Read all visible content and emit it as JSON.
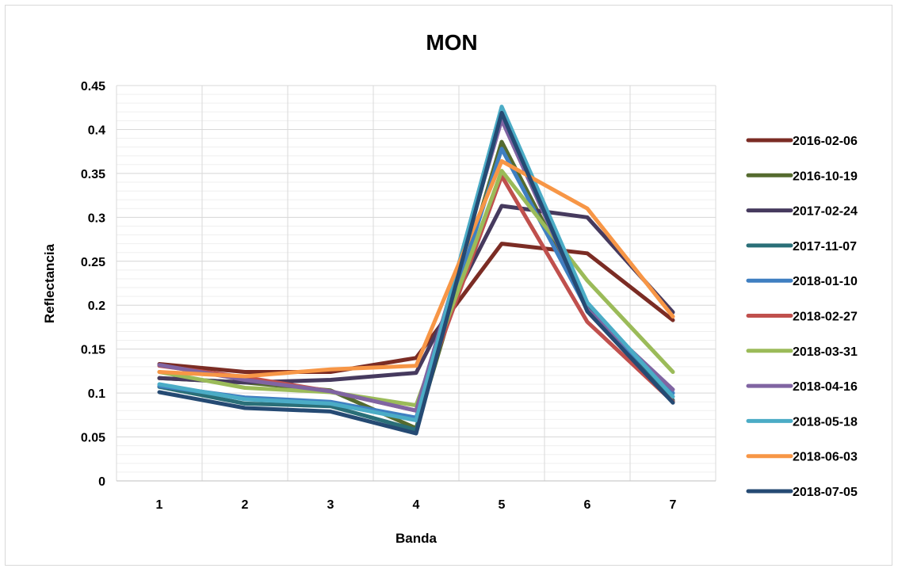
{
  "chart_data": {
    "type": "line",
    "title": "MON",
    "xlabel": "Banda",
    "ylabel": "Reflectancia",
    "x": [
      1,
      2,
      3,
      4,
      5,
      6,
      7
    ],
    "x_tick_labels": [
      "1",
      "2",
      "3",
      "4",
      "5",
      "6",
      "7"
    ],
    "ylim": [
      0,
      0.45
    ],
    "y_tick_labels": [
      "0",
      "0.05",
      "0.1",
      "0.15",
      "0.2",
      "0.25",
      "0.3",
      "0.35",
      "0.4",
      "0.45"
    ],
    "grid": true,
    "legend_position": "right",
    "series": [
      {
        "name": "2016-02-06",
        "color": "#7b2c24",
        "values": [
          0.133,
          0.124,
          0.124,
          0.14,
          0.27,
          0.259,
          0.183
        ]
      },
      {
        "name": "2016-10-19",
        "color": "#556b2f",
        "values": [
          0.117,
          0.112,
          0.103,
          0.06,
          0.386,
          0.198,
          0.09
        ]
      },
      {
        "name": "2017-02-24",
        "color": "#463a5e",
        "values": [
          0.117,
          0.112,
          0.115,
          0.123,
          0.313,
          0.3,
          0.192
        ]
      },
      {
        "name": "2017-11-07",
        "color": "#2a6f78",
        "values": [
          0.107,
          0.088,
          0.085,
          0.058,
          0.42,
          0.2,
          0.092
        ]
      },
      {
        "name": "2018-01-10",
        "color": "#3f7fc1",
        "values": [
          0.108,
          0.095,
          0.09,
          0.072,
          0.378,
          0.195,
          0.1
        ]
      },
      {
        "name": "2018-02-27",
        "color": "#c0504d",
        "values": [
          0.131,
          0.118,
          0.102,
          0.08,
          0.347,
          0.181,
          0.09
        ]
      },
      {
        "name": "2018-03-31",
        "color": "#9bbb59",
        "values": [
          0.124,
          0.106,
          0.101,
          0.086,
          0.353,
          0.228,
          0.124
        ]
      },
      {
        "name": "2018-04-16",
        "color": "#8064a2",
        "values": [
          0.132,
          0.115,
          0.102,
          0.08,
          0.411,
          0.195,
          0.104
        ]
      },
      {
        "name": "2018-05-18",
        "color": "#4bacc6",
        "values": [
          0.11,
          0.093,
          0.088,
          0.069,
          0.426,
          0.203,
          0.096
        ]
      },
      {
        "name": "2018-06-03",
        "color": "#f79646",
        "values": [
          0.124,
          0.119,
          0.127,
          0.131,
          0.364,
          0.31,
          0.187
        ]
      },
      {
        "name": "2018-07-05",
        "color": "#254a73",
        "values": [
          0.101,
          0.083,
          0.079,
          0.054,
          0.419,
          0.193,
          0.089
        ]
      }
    ]
  }
}
